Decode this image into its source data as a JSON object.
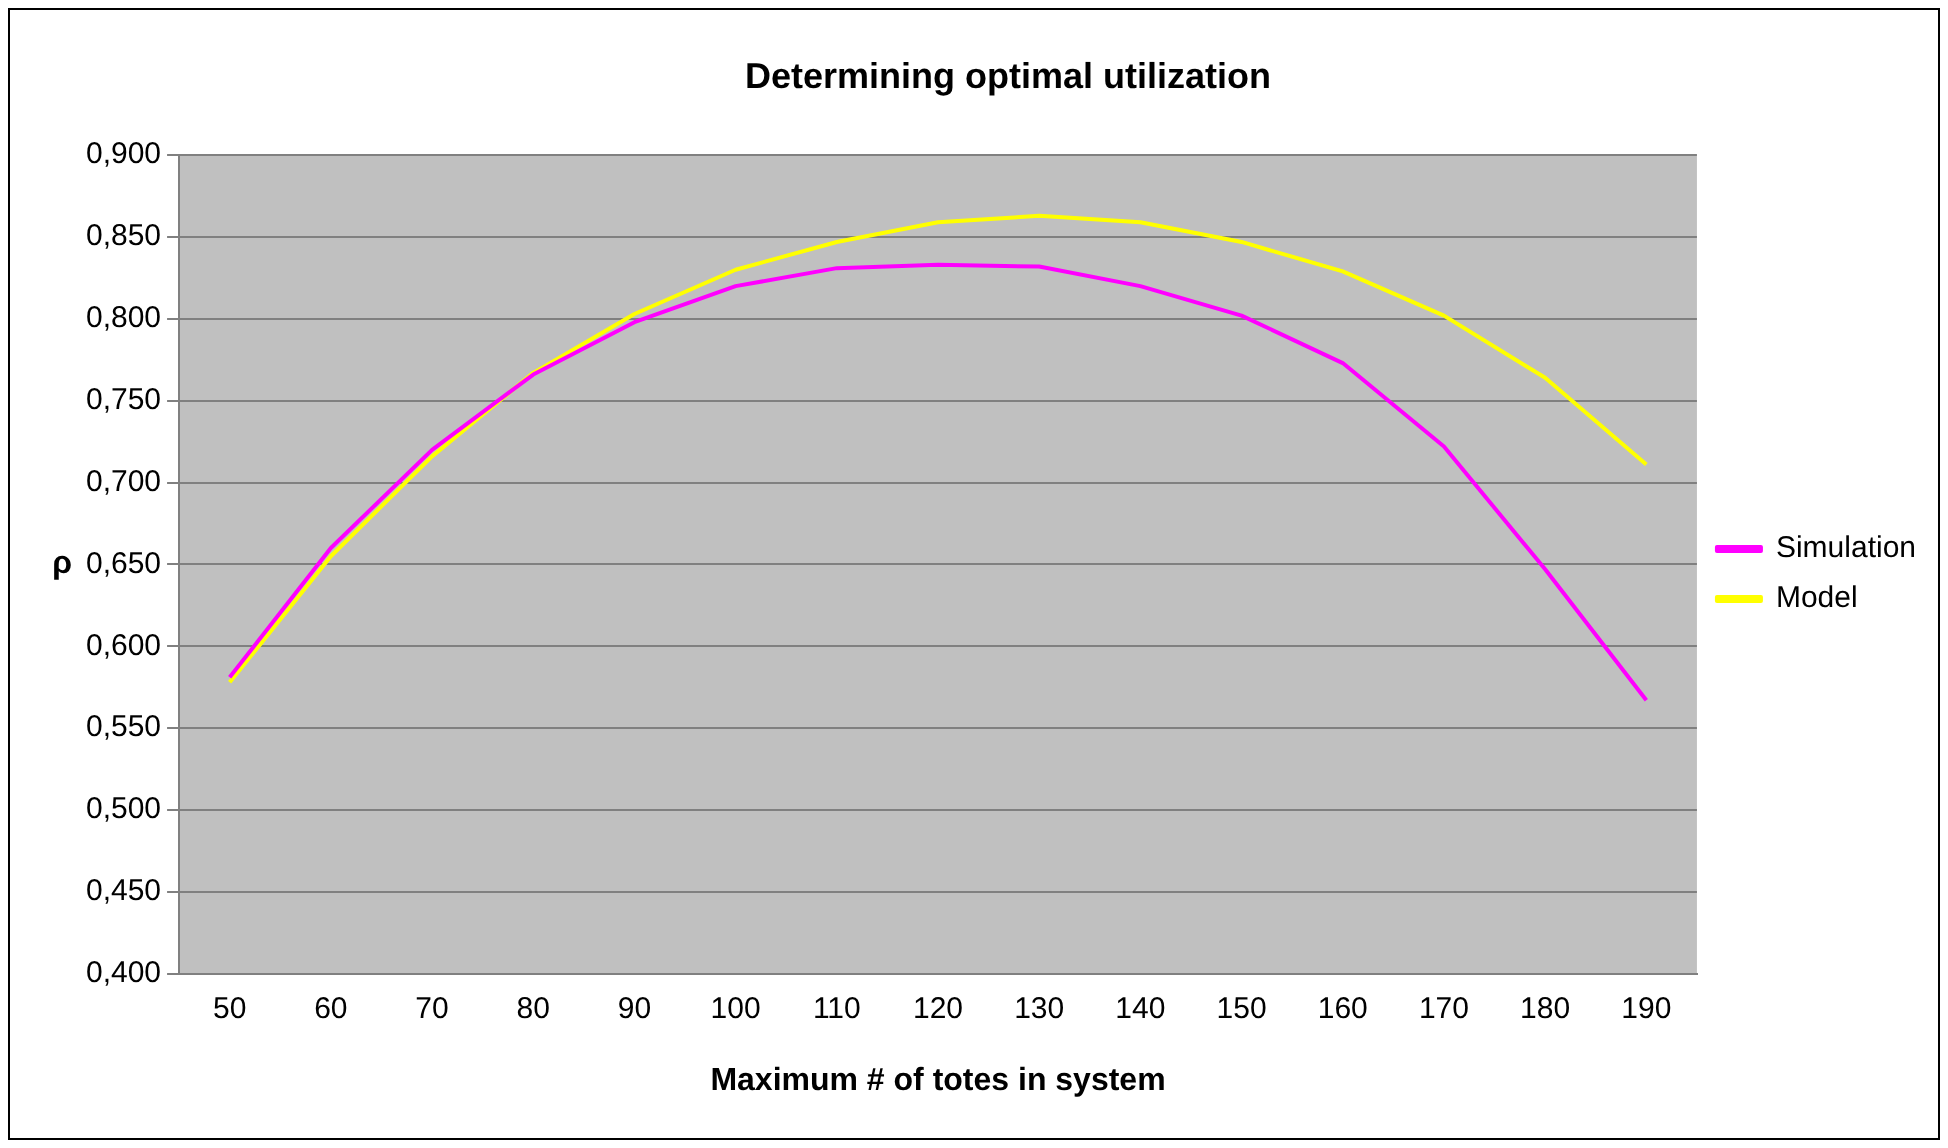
{
  "chart_data": {
    "type": "line",
    "title": "Determining optimal utilization",
    "xlabel": "Maximum # of totes in system",
    "ylabel": "ρ",
    "categories": [
      "50",
      "60",
      "70",
      "80",
      "90",
      "100",
      "110",
      "120",
      "130",
      "140",
      "150",
      "160",
      "170",
      "180",
      "190"
    ],
    "series": [
      {
        "name": "Simulation",
        "color": "#ff00ff",
        "values": [
          0.581,
          0.66,
          0.72,
          0.766,
          0.798,
          0.82,
          0.831,
          0.833,
          0.832,
          0.82,
          0.802,
          0.773,
          0.722,
          0.647,
          0.567
        ]
      },
      {
        "name": "Model",
        "color": "#ffff00",
        "values": [
          0.578,
          0.655,
          0.716,
          0.767,
          0.803,
          0.83,
          0.847,
          0.859,
          0.863,
          0.859,
          0.847,
          0.829,
          0.802,
          0.764,
          0.711
        ]
      }
    ],
    "ylim": [
      0.4,
      0.9
    ],
    "yticks": [
      {
        "value": 0.4,
        "label": "0,400"
      },
      {
        "value": 0.45,
        "label": "0,450"
      },
      {
        "value": 0.5,
        "label": "0,500"
      },
      {
        "value": 0.55,
        "label": "0,550"
      },
      {
        "value": 0.6,
        "label": "0,600"
      },
      {
        "value": 0.65,
        "label": "0,650"
      },
      {
        "value": 0.7,
        "label": "0,700"
      },
      {
        "value": 0.75,
        "label": "0,750"
      },
      {
        "value": 0.8,
        "label": "0,800"
      },
      {
        "value": 0.85,
        "label": "0,850"
      },
      {
        "value": 0.9,
        "label": "0,900"
      }
    ],
    "grid": "y",
    "legend": "right",
    "marker": "none",
    "line_style": "solid"
  }
}
